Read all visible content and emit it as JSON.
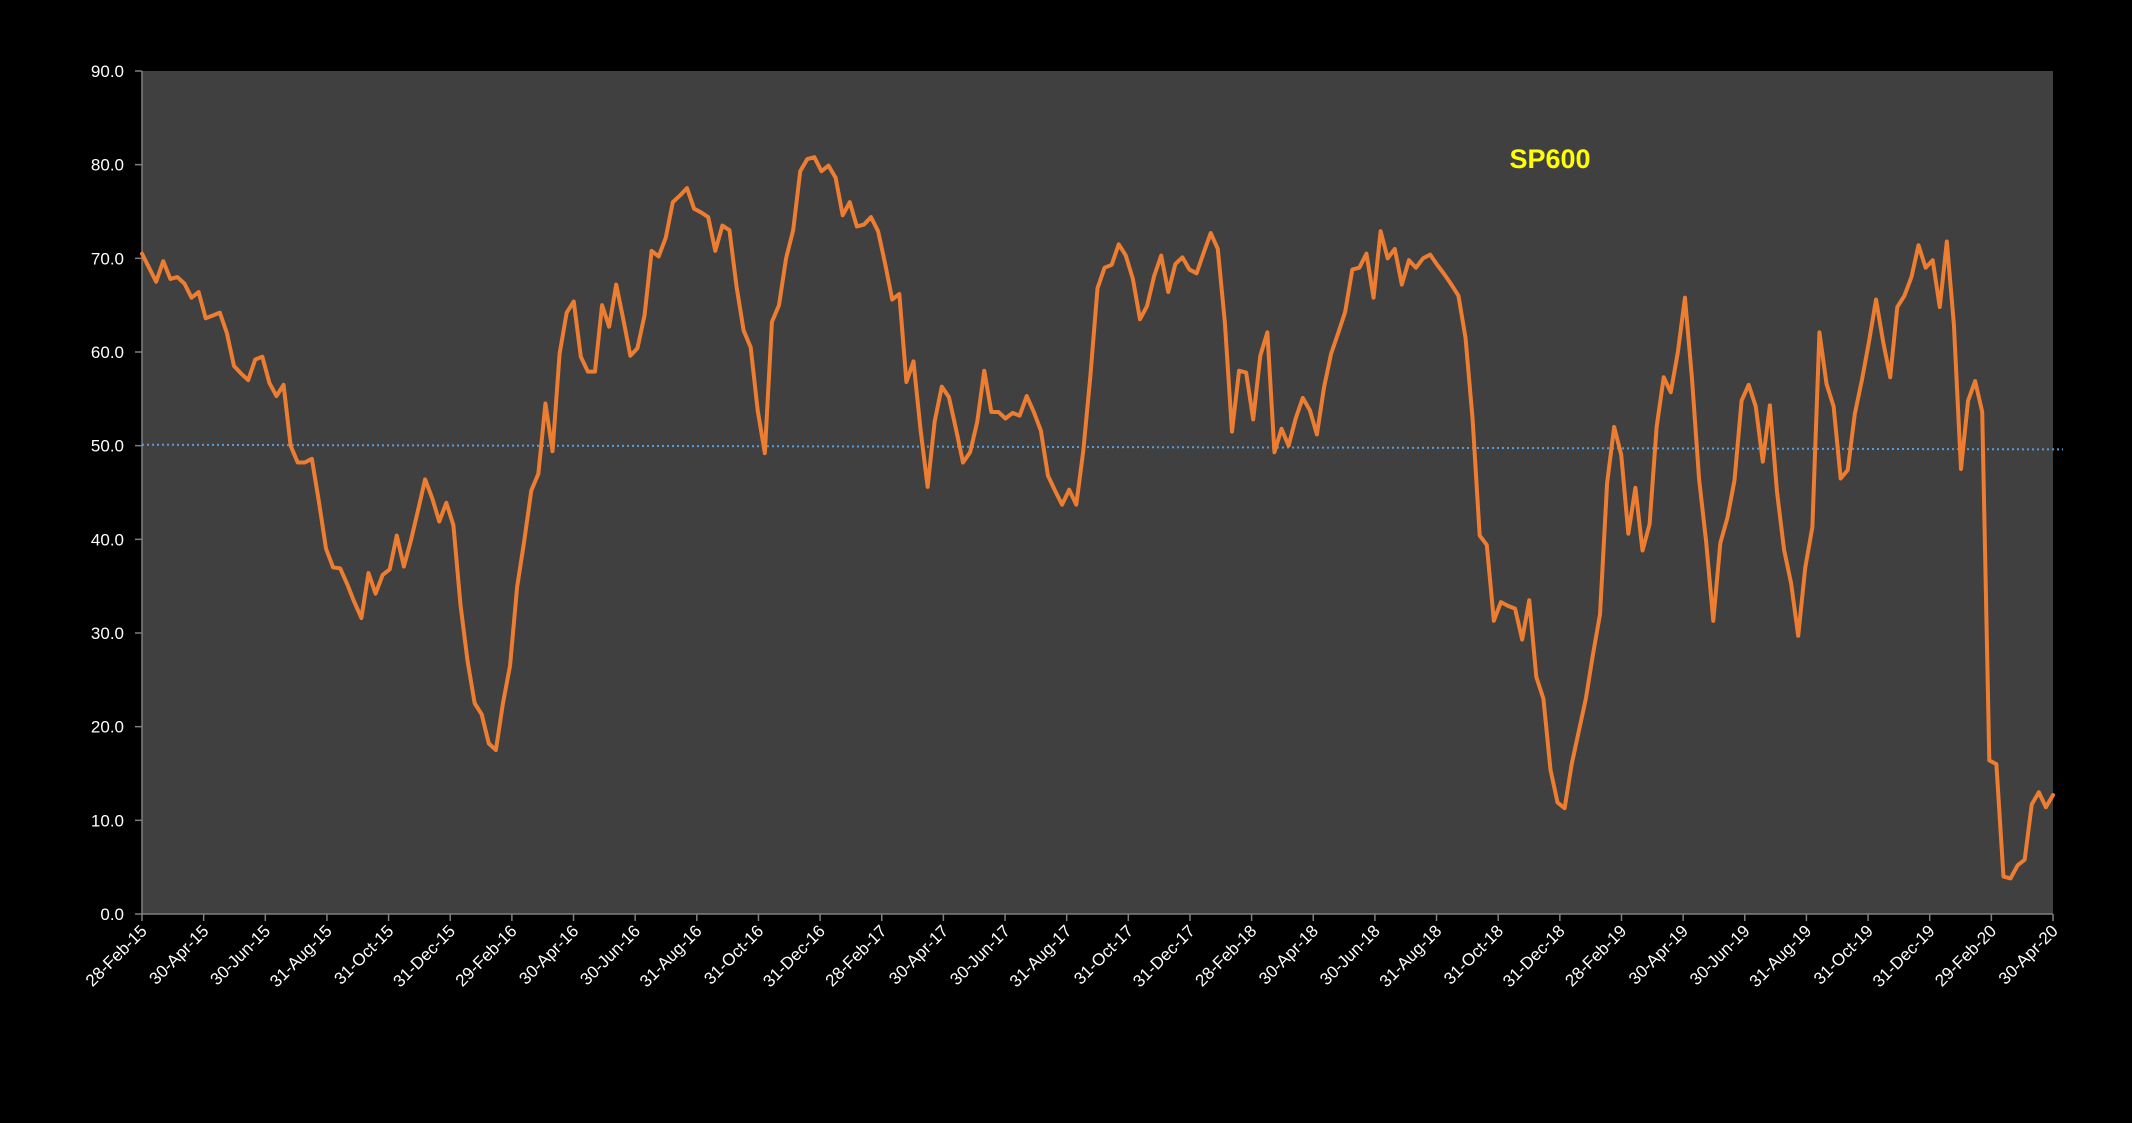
{
  "chart_data": {
    "type": "line",
    "title": "SP600",
    "xlabel": "",
    "ylabel": "",
    "ylim": [
      0,
      90
    ],
    "yticks": [
      "0.0",
      "10.0",
      "20.0",
      "30.0",
      "40.0",
      "50.0",
      "60.0",
      "70.0",
      "80.0",
      "90.0"
    ],
    "xtick_labels": [
      "28-Feb-15",
      "30-Apr-15",
      "30-Jun-15",
      "31-Aug-15",
      "31-Oct-15",
      "31-Dec-15",
      "29-Feb-16",
      "30-Apr-16",
      "30-Jun-16",
      "31-Aug-16",
      "31-Oct-16",
      "31-Dec-16",
      "28-Feb-17",
      "30-Apr-17",
      "30-Jun-17",
      "31-Aug-17",
      "31-Oct-17",
      "31-Dec-17",
      "28-Feb-18",
      "30-Apr-18",
      "30-Jun-18",
      "31-Aug-18",
      "31-Oct-18",
      "31-Dec-18",
      "28-Feb-19",
      "30-Apr-19",
      "30-Jun-19",
      "31-Aug-19",
      "31-Oct-19",
      "31-Dec-19",
      "29-Feb-20",
      "30-Apr-20"
    ],
    "x_range": [
      "28-Feb-15",
      "30-Apr-20"
    ],
    "grid": false,
    "colors": {
      "background": "#000000",
      "plot_area": "#404040",
      "series_line": "#ed7d31",
      "reference_line": "#5b9bd5",
      "title": "#ffff00",
      "text": "#ffffff"
    },
    "series": [
      {
        "values": [
          70.5,
          69.0,
          67.5,
          69.7,
          67.8,
          68.0,
          67.3,
          65.8,
          66.4,
          63.6,
          63.9,
          64.2,
          62.0,
          58.5,
          57.7,
          57.0,
          59.2,
          59.5,
          56.7,
          55.3,
          56.5,
          50.0,
          48.2,
          48.2,
          48.6,
          44.0,
          39.0,
          37.0,
          36.9,
          35.2,
          33.3,
          31.6,
          36.4,
          34.2,
          36.2,
          36.8,
          40.4,
          37.1,
          39.9,
          43.1,
          46.4,
          44.4,
          41.9,
          43.9,
          41.5,
          33.0,
          27.0,
          22.5,
          21.3,
          18.2,
          17.5,
          22.5,
          26.5,
          34.9,
          39.8,
          45.2,
          47.0,
          54.5,
          49.4,
          59.8,
          64.2,
          65.4,
          59.5,
          57.9,
          57.9,
          65.0,
          62.7,
          67.2,
          63.5,
          59.6,
          60.4,
          63.9,
          70.8,
          70.2,
          72.2,
          76.0,
          76.7,
          77.5,
          75.3,
          74.9,
          74.4,
          70.8,
          73.5,
          73.0,
          67.0,
          62.3,
          60.5,
          53.7,
          49.2,
          63.2,
          65.0,
          70.0,
          73.0,
          79.3,
          80.6,
          80.8,
          79.3,
          79.9,
          78.6,
          74.6,
          76.0,
          73.4,
          73.6,
          74.4,
          72.9,
          69.4,
          65.6,
          66.2,
          56.8,
          59.0,
          51.7,
          45.6,
          52.6,
          56.3,
          55.2,
          51.8,
          48.2,
          49.3,
          52.5,
          58.0,
          53.6,
          53.6,
          52.9,
          53.5,
          53.2,
          55.3,
          53.6,
          51.6,
          46.8,
          45.2,
          43.7,
          45.3,
          43.7,
          49.5,
          57.5,
          66.8,
          69.0,
          69.3,
          71.5,
          70.3,
          67.8,
          63.5,
          64.9,
          68.1,
          70.3,
          66.4,
          69.4,
          70.1,
          68.8,
          68.4,
          70.6,
          72.7,
          71.0,
          63.1,
          51.5,
          58.0,
          57.8,
          52.8,
          59.6,
          62.1,
          49.3,
          51.8,
          50.0,
          52.9,
          55.1,
          53.8,
          51.2,
          56.2,
          59.8,
          62.0,
          64.3,
          68.8,
          69.0,
          70.5,
          65.8,
          72.9,
          70.0,
          71.0,
          67.2,
          69.8,
          69.0,
          70.0,
          70.4,
          69.3,
          68.3,
          67.2,
          66.0,
          61.5,
          52.8,
          40.4,
          39.4,
          31.3,
          33.3,
          32.9,
          32.6,
          29.3,
          33.5,
          25.3,
          23.0,
          15.4,
          11.9,
          11.3,
          16.0,
          19.5,
          23.0,
          27.7,
          32.0,
          46.0,
          52.0,
          49.0,
          40.6,
          45.5,
          38.8,
          41.6,
          52.0,
          57.3,
          55.7,
          60.0,
          65.8,
          57.1,
          46.4,
          39.7,
          31.3,
          39.6,
          42.3,
          46.3,
          54.8,
          56.5,
          54.2,
          48.3,
          54.3,
          45.1,
          38.9,
          35.3,
          29.7,
          37.0,
          41.3,
          62.1,
          56.6,
          54.2,
          46.5,
          47.4,
          53.4,
          57.0,
          61.1,
          65.6,
          61.1,
          57.3,
          64.8,
          66.0,
          68.0,
          71.4,
          69.0,
          69.8,
          64.8,
          71.8,
          62.9,
          47.5,
          54.8,
          56.9,
          53.6,
          16.4,
          16.0,
          4.0,
          3.8,
          5.2,
          5.8,
          11.7,
          13.0,
          11.4,
          12.7
        ]
      },
      {
        "values": [
          50.1,
          49.6
        ]
      }
    ],
    "legend": "none"
  }
}
